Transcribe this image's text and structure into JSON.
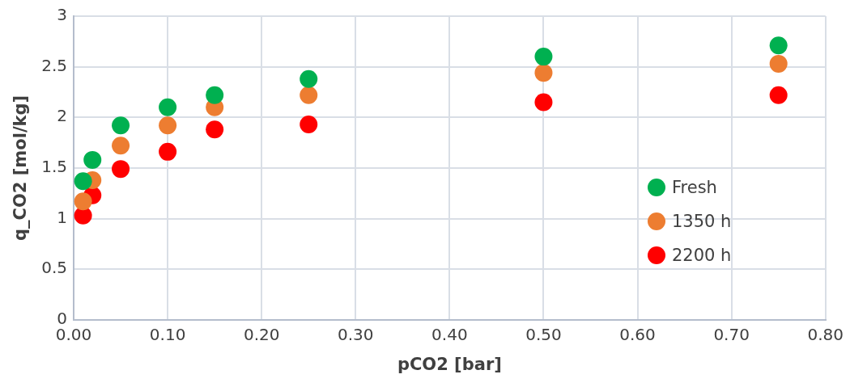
{
  "chart_data": {
    "type": "scatter",
    "xlabel": "pCO2 [bar]",
    "ylabel": "q_CO2 [mol/kg]",
    "x": [
      0.01,
      0.02,
      0.05,
      0.1,
      0.15,
      0.25,
      0.5,
      0.75
    ],
    "series": [
      {
        "name": "Fresh",
        "color": "#00b050",
        "values": [
          1.37,
          1.58,
          1.92,
          2.1,
          2.22,
          2.38,
          2.6,
          2.71
        ]
      },
      {
        "name": "1350 h",
        "color": "#ed7d31",
        "values": [
          1.17,
          1.38,
          1.72,
          1.92,
          2.1,
          2.22,
          2.44,
          2.53
        ]
      },
      {
        "name": "2200 h",
        "color": "#ff0000",
        "values": [
          1.03,
          1.23,
          1.49,
          1.66,
          1.88,
          1.93,
          2.15,
          2.22
        ]
      }
    ],
    "xlim": [
      0,
      0.8
    ],
    "xticks": [
      {
        "value": 0,
        "label": "0.00"
      },
      {
        "value": 0.1,
        "label": "0.10"
      },
      {
        "value": 0.2,
        "label": "0.20"
      },
      {
        "value": 0.3,
        "label": "0.30"
      },
      {
        "value": 0.4,
        "label": "0.40"
      },
      {
        "value": 0.5,
        "label": "0.50"
      },
      {
        "value": 0.6,
        "label": "0.60"
      },
      {
        "value": 0.7,
        "label": "0.70"
      },
      {
        "value": 0.8,
        "label": "0.80"
      }
    ],
    "ylim": [
      0,
      3
    ],
    "yticks": [
      0,
      {
        "value": 0.5,
        "label": "0.5"
      },
      1,
      {
        "value": 1.5,
        "label": "1.5"
      },
      2,
      {
        "value": 2.5,
        "label": "2.5"
      },
      3
    ],
    "grid": true,
    "legend": "right",
    "marker": "circle"
  }
}
